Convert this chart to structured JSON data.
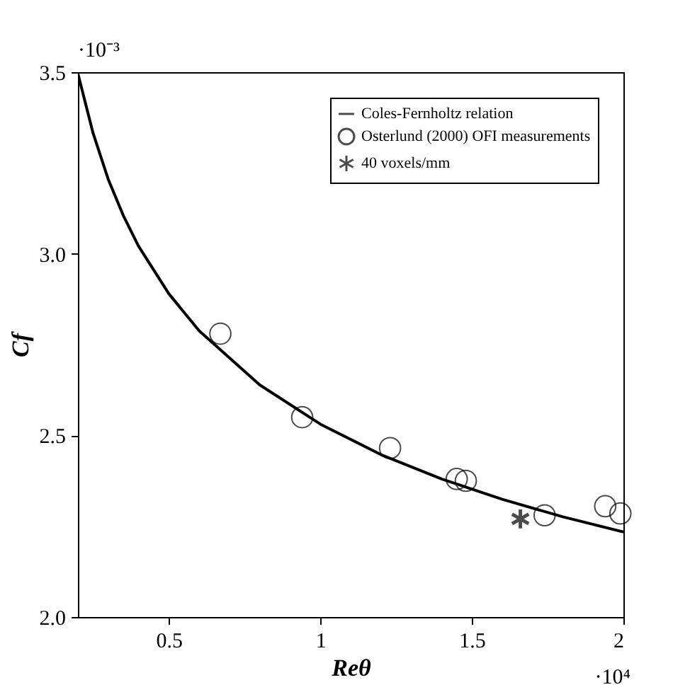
{
  "chart_data": {
    "type": "line",
    "xlabel": "Reθ",
    "ylabel": "Cf",
    "series": [
      {
        "name": "Coles-Fernholtz relation",
        "color": "#000000",
        "marker": "none",
        "line_style": "solid",
        "x": [
          0.2,
          0.25,
          0.3,
          0.35,
          0.4,
          0.5,
          0.6,
          0.8,
          1.0,
          1.2,
          1.4,
          1.6,
          1.8,
          2.0
        ],
        "values": [
          3.496,
          3.332,
          3.205,
          3.105,
          3.021,
          2.89,
          2.788,
          2.639,
          2.531,
          2.447,
          2.38,
          2.324,
          2.276,
          2.234
        ]
      },
      {
        "name": "Osterlund (2000) OFI measurements",
        "type": "scatter",
        "color": "#000000",
        "marker": "circle",
        "x": [
          0.67,
          0.94,
          1.23,
          1.45,
          1.48,
          1.74,
          1.94,
          1.99
        ],
        "values": [
          2.78,
          2.55,
          2.465,
          2.38,
          2.375,
          2.28,
          2.305,
          2.285
        ]
      },
      {
        "name": "40 voxels/mm",
        "type": "scatter",
        "color": "#000000",
        "marker": "cross",
        "x": [
          1.66
        ],
        "values": [
          2.27
        ]
      }
    ],
    "xlim": [
      0.2,
      2.0
    ],
    "xticks": [
      0.5,
      1,
      1.5,
      2
    ],
    "ylim": [
      2.0,
      3.5
    ],
    "yticks": [
      {
        "value": 2.0,
        "label": "2.0"
      },
      {
        "value": 2.5,
        "label": "2.5"
      },
      {
        "value": 3.0,
        "label": "3.0"
      },
      {
        "value": 3.5,
        "label": "3.5"
      }
    ],
    "annotations": [
      "·10⁻³",
      "·10⁴"
    ],
    "grid": false,
    "legend": "top right"
  }
}
